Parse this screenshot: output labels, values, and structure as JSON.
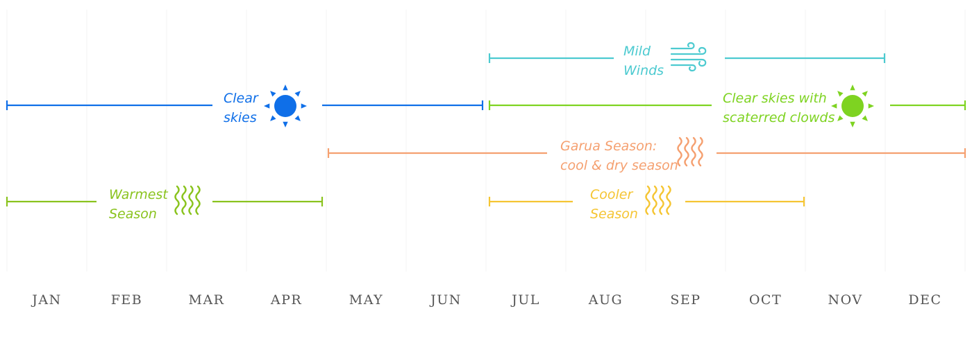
{
  "months": [
    "JAN",
    "FEB",
    "MAR",
    "APR",
    "MAY",
    "JUN",
    "JUL",
    "AUG",
    "SEP",
    "OCT",
    "NOV",
    "DEC"
  ],
  "bars": [
    {
      "id": "mild-winds",
      "lines": [
        "Mild",
        "Winds"
      ],
      "color": "#4ccad0",
      "icon": "wind-icon",
      "start_month": 7,
      "end_month": 11.5
    },
    {
      "id": "clear-skies",
      "lines": [
        "Clear",
        "skies"
      ],
      "color": "#0f6fe8",
      "icon": "sun-icon",
      "start_month": 1,
      "end_month": 6.5
    },
    {
      "id": "clear-skies-scattered-clouds",
      "lines": [
        "Clear skies with",
        "scaterred clowds"
      ],
      "color": "#7ed321",
      "icon": "sun-icon",
      "start_month": 7,
      "end_month": 12
    },
    {
      "id": "garua-season",
      "lines": [
        "Garua Season:",
        "cool & dry season"
      ],
      "color": "#f5a070",
      "icon": "heat-waves-icon",
      "start_month": 5,
      "end_month": 12
    },
    {
      "id": "warmest-season",
      "lines": [
        "Warmest",
        "Season"
      ],
      "color": "#8ac31e",
      "icon": "heat-waves-icon",
      "start_month": 1,
      "end_month": 4.5
    },
    {
      "id": "cooler-season",
      "lines": [
        "Cooler",
        "Season"
      ],
      "color": "#f5c533",
      "icon": "heat-waves-icon",
      "start_month": 7,
      "end_month": 11
    }
  ]
}
